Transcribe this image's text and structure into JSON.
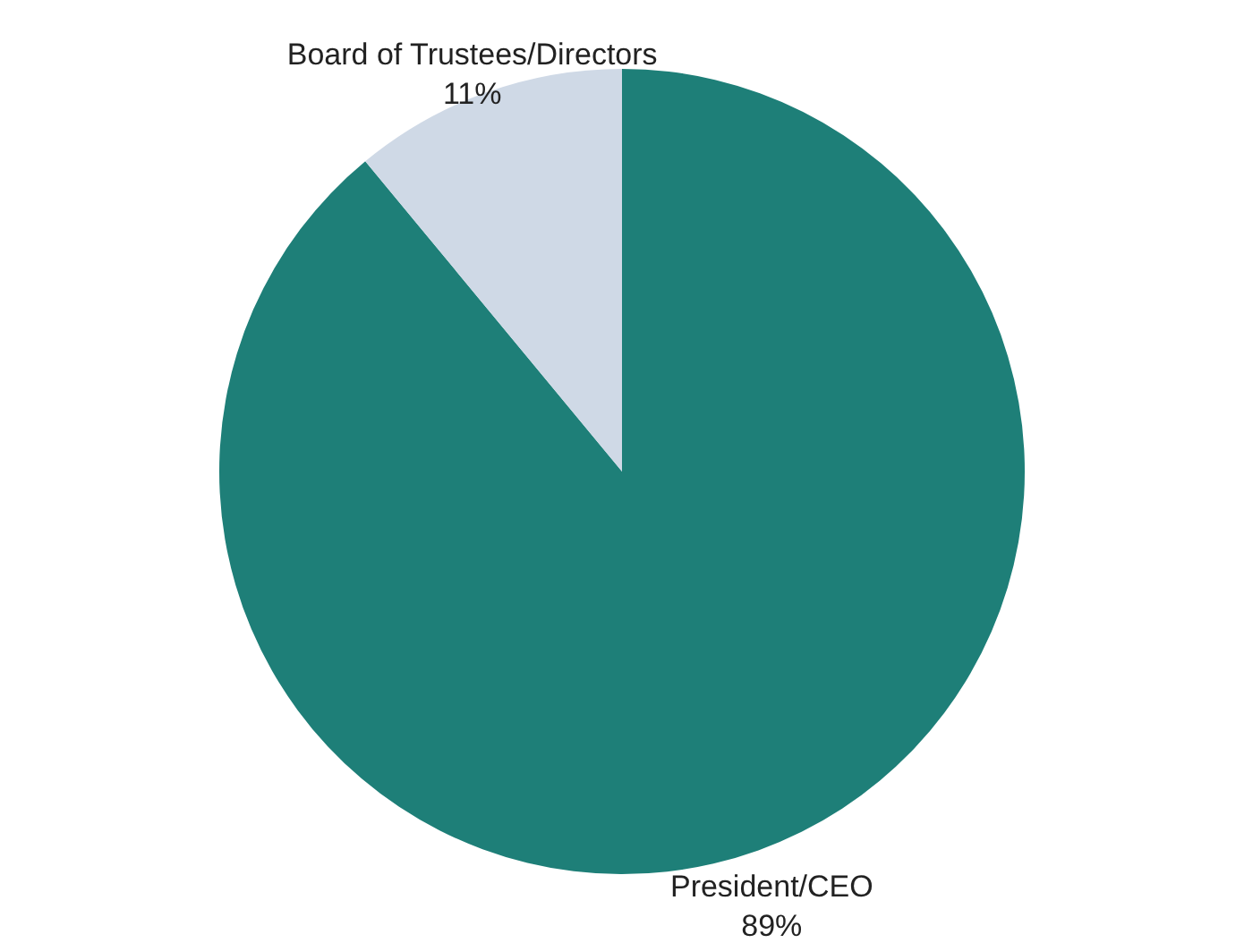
{
  "chart_data": {
    "type": "pie",
    "categories": [
      "President/CEO",
      "Board of Trustees/Directors"
    ],
    "values": [
      89,
      11
    ],
    "colors": [
      "#1e7f78",
      "#cfd9e6"
    ],
    "value_labels": [
      "89%",
      "11%"
    ]
  }
}
